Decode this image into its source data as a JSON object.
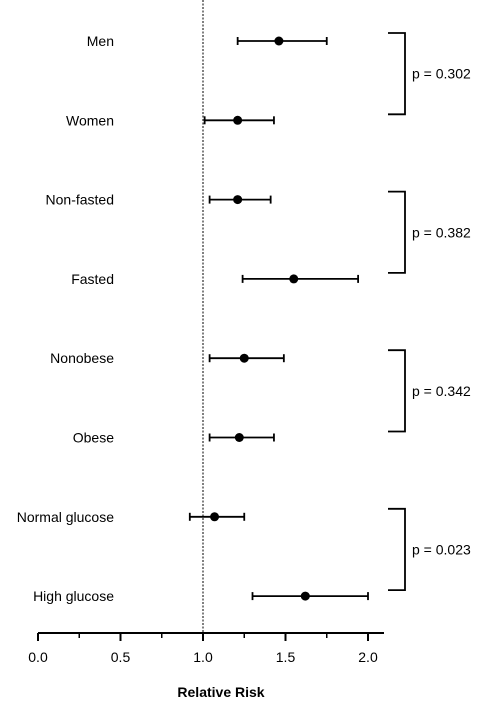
{
  "chart_data": {
    "type": "forest",
    "xlabel": "Relative Risk",
    "xlim": [
      0.0,
      2.1
    ],
    "xticks": [
      "0.0",
      "0.5",
      "1.0",
      "1.5",
      "2.0"
    ],
    "reference_line": 1.0,
    "rows": [
      {
        "label": "Men",
        "estimate": 1.46,
        "lower": 1.21,
        "upper": 1.75
      },
      {
        "label": "Women",
        "estimate": 1.21,
        "lower": 1.01,
        "upper": 1.43
      },
      {
        "label": "Non-fasted",
        "estimate": 1.21,
        "lower": 1.04,
        "upper": 1.41
      },
      {
        "label": "Fasted",
        "estimate": 1.55,
        "lower": 1.24,
        "upper": 1.94
      },
      {
        "label": "Nonobese",
        "estimate": 1.25,
        "lower": 1.04,
        "upper": 1.49
      },
      {
        "label": "Obese",
        "estimate": 1.22,
        "lower": 1.04,
        "upper": 1.43
      },
      {
        "label": "Normal glucose",
        "estimate": 1.07,
        "lower": 0.92,
        "upper": 1.25
      },
      {
        "label": "High glucose",
        "estimate": 1.62,
        "lower": 1.3,
        "upper": 2.0
      }
    ],
    "comparisons": [
      {
        "rows": [
          0,
          1
        ],
        "text": "p = 0.302"
      },
      {
        "rows": [
          2,
          3
        ],
        "text": "p = 0.382"
      },
      {
        "rows": [
          4,
          5
        ],
        "text": "p = 0.342"
      },
      {
        "rows": [
          6,
          7
        ],
        "text": "p = 0.023"
      }
    ]
  }
}
